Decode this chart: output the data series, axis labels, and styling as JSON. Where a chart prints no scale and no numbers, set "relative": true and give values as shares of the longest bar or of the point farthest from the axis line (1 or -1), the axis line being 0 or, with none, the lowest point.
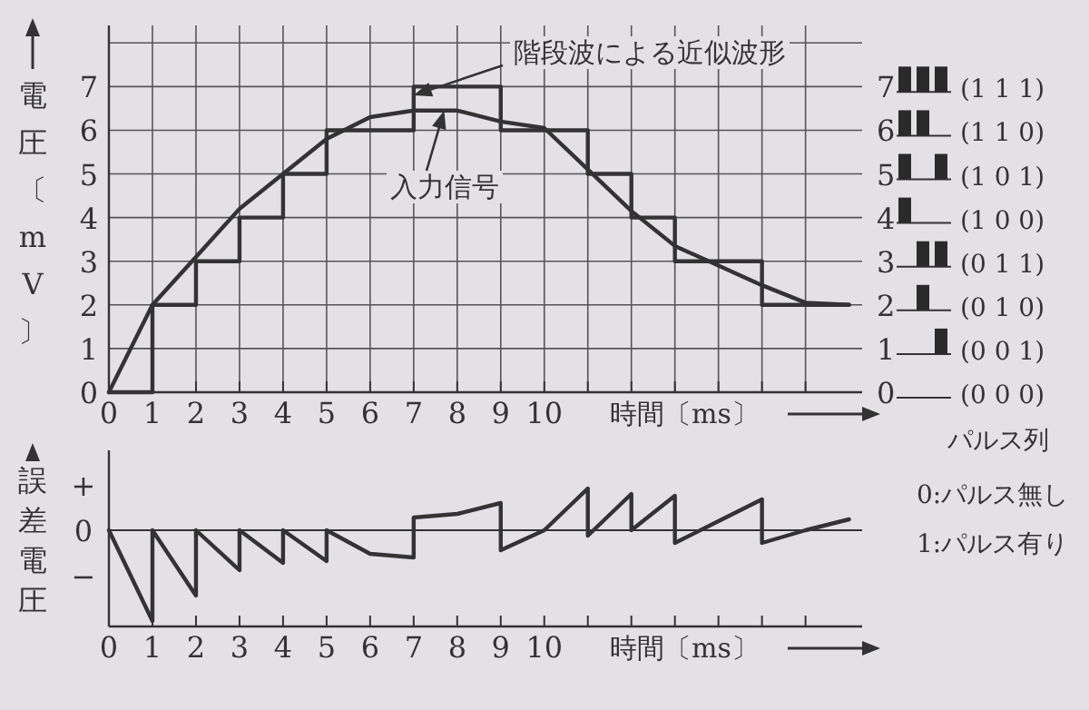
{
  "chart_data": [
    {
      "type": "line",
      "xlabel": "時間〔ms〕",
      "ylabel": "電圧〔mV〕",
      "xlim": [
        0,
        17.3
      ],
      "ylim": [
        0,
        8.4
      ],
      "xticks": [
        0,
        1,
        2,
        3,
        4,
        5,
        6,
        7,
        8,
        9,
        10,
        {
          "value": 11,
          "label": null
        },
        {
          "value": 12,
          "label": null
        },
        {
          "value": 13,
          "label": null
        },
        {
          "value": 14,
          "label": null
        },
        {
          "value": 15,
          "label": null
        },
        {
          "value": 16,
          "label": null
        }
      ],
      "yticks": [
        0,
        1,
        2,
        3,
        4,
        5,
        6,
        7,
        {
          "value": 8,
          "label": null
        }
      ],
      "y2lim": [
        0,
        8.4
      ],
      "y2ticks": [
        0,
        1,
        2,
        3,
        4,
        5,
        6,
        7
      ],
      "grid": true,
      "series": [
        {
          "type": "line",
          "color": "#333333",
          "x": [
            0,
            1,
            2,
            3,
            4,
            5,
            6,
            7,
            8,
            9,
            10,
            11,
            12,
            13,
            14,
            15,
            16,
            17
          ],
          "values": [
            0,
            2.0,
            3.1,
            4.2,
            5.0,
            5.8,
            6.3,
            6.45,
            6.45,
            6.2,
            6.05,
            5.1,
            4.15,
            3.35,
            2.9,
            2.45,
            2.05,
            2.0
          ]
        },
        {
          "type": "step",
          "color": "#333333",
          "x": [
            0,
            1,
            2,
            3,
            4,
            5,
            7,
            9,
            11,
            12,
            13,
            15,
            17
          ],
          "values": [
            0,
            2,
            3,
            4,
            5,
            6,
            7,
            6,
            5,
            4,
            3,
            2,
            2
          ]
        }
      ],
      "annotations": [
        {
          "text": "階段波による近似波形",
          "x": 7,
          "y": 6.8
        },
        {
          "text": "入力信号",
          "x": 7.7,
          "y": 6.45
        },
        "(0 0 0)",
        "(0 0 1)",
        "(0 1 0)",
        "(0 1 1)",
        "(1 0 0)",
        "(1 0 1)",
        "(1 1 0)",
        "(1 1 1)",
        "パルス列",
        "0:パルス無し",
        "1:パルス有り"
      ]
    },
    {
      "type": "line",
      "relative": true,
      "xlabel": "時間〔ms〕",
      "ylabel": "誤差電圧",
      "xlim": [
        0,
        17.3
      ],
      "xticks": [
        0,
        1,
        2,
        3,
        4,
        5,
        6,
        7,
        8,
        9,
        10,
        {
          "value": 11,
          "label": null
        },
        {
          "value": 12,
          "label": null
        },
        {
          "value": 13,
          "label": null
        },
        {
          "value": 14,
          "label": null
        },
        {
          "value": 15,
          "label": null
        },
        {
          "value": 16,
          "label": null
        }
      ],
      "grid": false,
      "series": [
        {
          "color": "#333333",
          "x": [
            0,
            1,
            1,
            2,
            2,
            3,
            3,
            4,
            4,
            5,
            5,
            6,
            7,
            7,
            8,
            9,
            9,
            10,
            11,
            11,
            12,
            12,
            13,
            13,
            14,
            15,
            15,
            16,
            17
          ],
          "values": [
            0,
            -1,
            0,
            -0.72,
            0,
            -0.44,
            0,
            -0.36,
            0,
            -0.34,
            0,
            -0.26,
            -0.3,
            0.14,
            0.18,
            0.3,
            -0.22,
            0,
            0.46,
            -0.06,
            0.4,
            0,
            0.38,
            -0.14,
            0.1,
            0.34,
            -0.14,
            0,
            0.12
          ]
        }
      ],
      "annotations": [
        "+",
        "0",
        "−"
      ]
    }
  ]
}
